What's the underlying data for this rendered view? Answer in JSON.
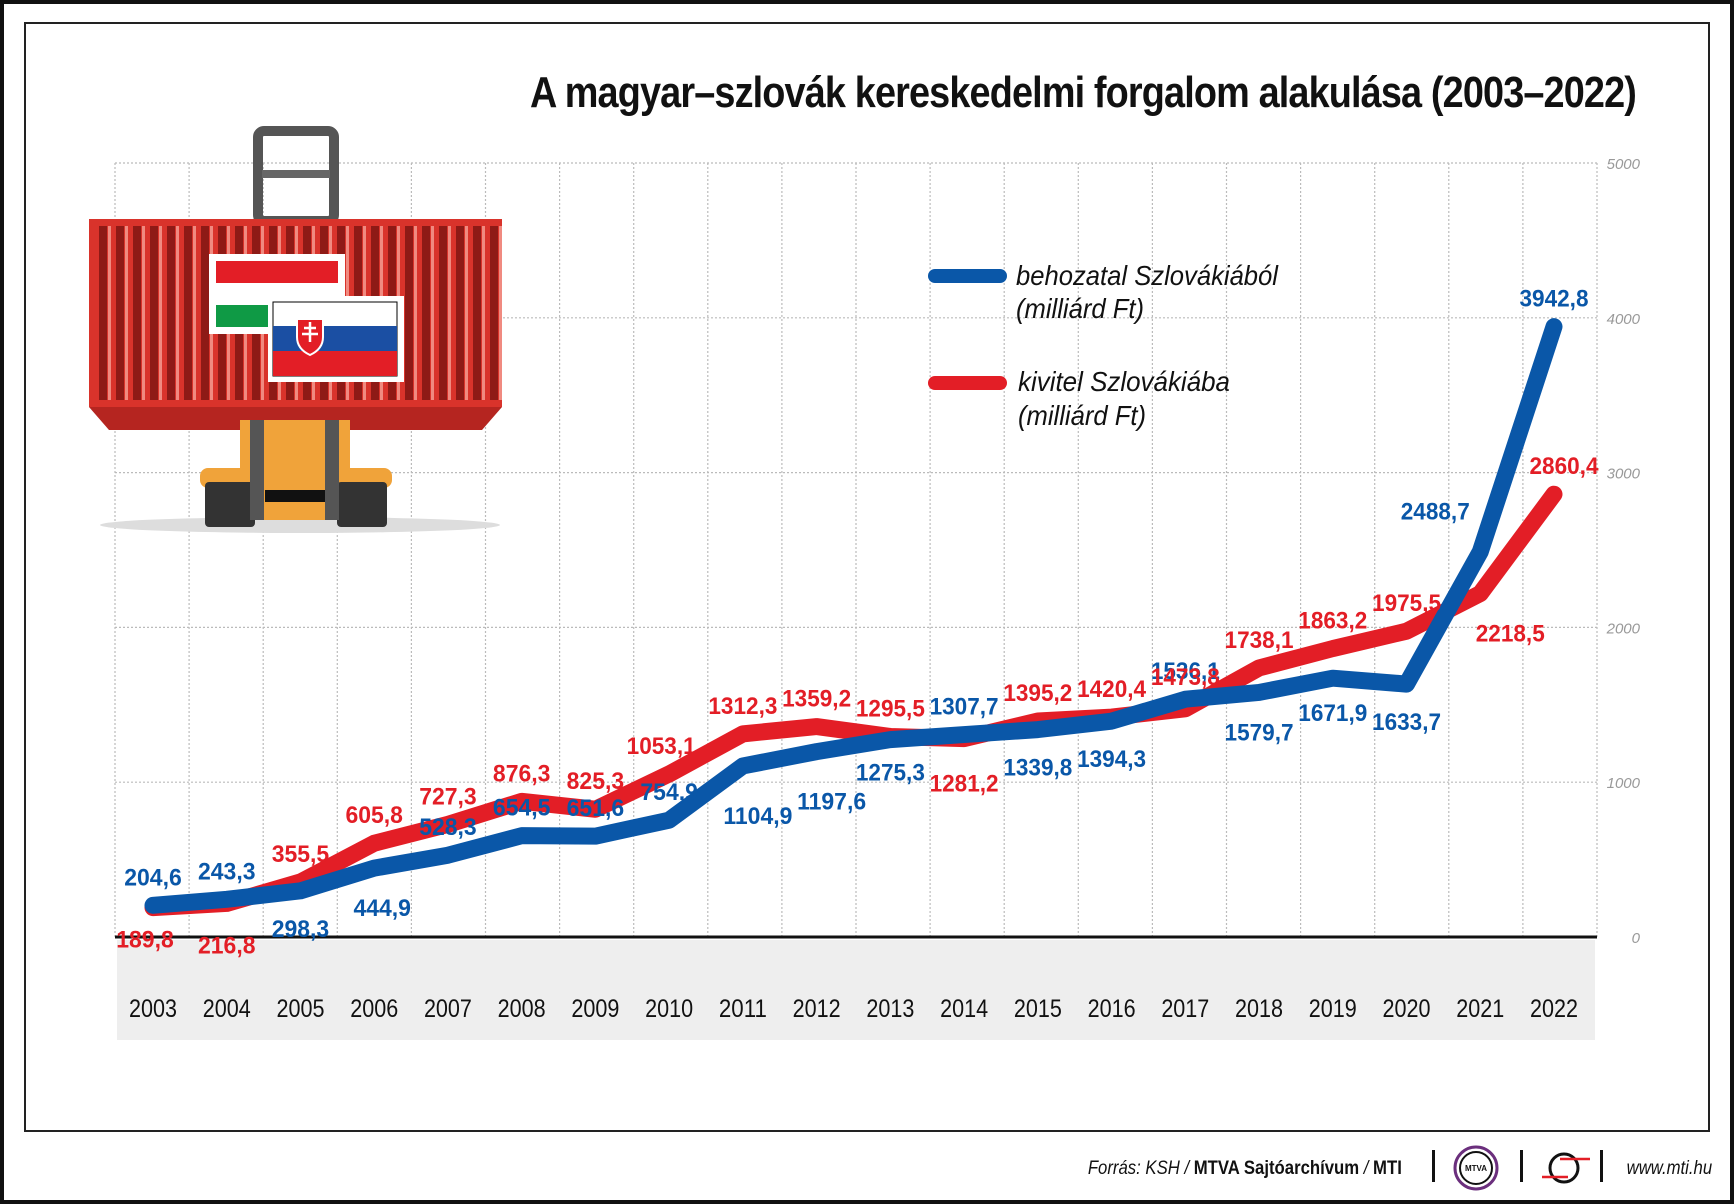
{
  "title": "A magyar–szlovák kereskedelmi forgalom alakulása (2003–2022)",
  "chart_data": {
    "type": "line",
    "title": "A magyar–szlovák kereskedelmi forgalom alakulása (2003–2022)",
    "xlabel": "",
    "ylabel": "",
    "categories": [
      "2003",
      "2004",
      "2005",
      "2006",
      "2007",
      "2008",
      "2009",
      "2010",
      "2011",
      "2012",
      "2013",
      "2014",
      "2015",
      "2016",
      "2017",
      "2018",
      "2019",
      "2020",
      "2021",
      "2022"
    ],
    "yticks": [
      "0",
      "1000",
      "2000",
      "3000",
      "4000",
      "5000"
    ],
    "ylim": [
      0,
      5000
    ],
    "grid": true,
    "legend_position": "top-center",
    "series": [
      {
        "name": "behozatal Szlovákiából (milliárd Ft)",
        "legend_line1": "behozatal Szlovákiából",
        "legend_line2": "(milliárd Ft)",
        "color": "#0a57a8",
        "values": [
          204.6,
          243.3,
          298.3,
          444.9,
          528.3,
          654.5,
          651.6,
          754.9,
          1104.9,
          1197.6,
          1275.3,
          1307.7,
          1339.8,
          1394.3,
          1536.1,
          1579.7,
          1671.9,
          1633.7,
          2488.7,
          3942.8
        ],
        "labels": [
          "204,6",
          "243,3",
          "298,3",
          "444,9",
          "528,3",
          "654,5",
          "651,6",
          "754,9",
          "1104,9",
          "1197,6",
          "1275,3",
          "1307,7",
          "1339,8",
          "1394,3",
          "1536,1",
          "1579,7",
          "1671,9",
          "1633,7",
          "2488,7",
          "3942,8"
        ]
      },
      {
        "name": "kivitel Szlovákiába (milliárd Ft)",
        "legend_line1": "kivitel Szlovákiába",
        "legend_line2": "(milliárd Ft)",
        "color": "#e31e26",
        "values": [
          189.8,
          216.8,
          355.5,
          605.8,
          727.3,
          876.3,
          825.3,
          1053.1,
          1312.3,
          1359.2,
          1295.5,
          1281.2,
          1395.2,
          1420.4,
          1473.8,
          1738.1,
          1863.2,
          1975.5,
          2218.5,
          2860.4
        ],
        "labels": [
          "189,8",
          "216,8",
          "355,5",
          "605,8",
          "727,3",
          "876,3",
          "825,3",
          "1053,1",
          "1312,3",
          "1359,2",
          "1295,5",
          "1281,2",
          "1395,2",
          "1420,4",
          "1473,8",
          "1738,1",
          "1863,2",
          "1975,5",
          "2218,5",
          "2860,4"
        ]
      }
    ]
  },
  "illustration": {
    "description": "forklift carrying red shipping container with Hungarian and Slovak flags"
  },
  "footer": {
    "source_prefix": "Forrás: KSH / ",
    "source_bold": "MTVA Sajtóarchívum",
    "source_sep": " / ",
    "source_mti": "MTI",
    "logo1_text": "MTVA",
    "url": "www.mti.hu"
  }
}
